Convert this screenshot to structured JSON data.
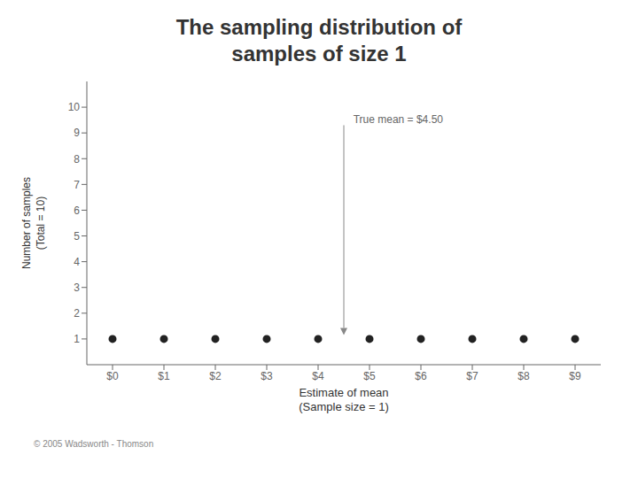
{
  "chart_data": {
    "type": "scatter",
    "title": "The sampling distribution of\nsamples of size 1",
    "x_label": "Estimate of mean\n(Sample size = 1)",
    "y_label": "Number of samples\n(Total = 10)",
    "x": [
      0,
      1,
      2,
      3,
      4,
      5,
      6,
      7,
      8,
      9
    ],
    "values": [
      1,
      1,
      1,
      1,
      1,
      1,
      1,
      1,
      1,
      1
    ],
    "color": "#222222",
    "xlim": [
      -0.5,
      9.5
    ],
    "xticks": [
      {
        "value": 0,
        "label": "$0"
      },
      {
        "value": 1,
        "label": "$1"
      },
      {
        "value": 2,
        "label": "$2"
      },
      {
        "value": 3,
        "label": "$3"
      },
      {
        "value": 4,
        "label": "$4"
      },
      {
        "value": 5,
        "label": "$5"
      },
      {
        "value": 6,
        "label": "$6"
      },
      {
        "value": 7,
        "label": "$7"
      },
      {
        "value": 8,
        "label": "$8"
      },
      {
        "value": 9,
        "label": "$9"
      }
    ],
    "ylim": [
      0,
      11
    ],
    "yticks": [
      1,
      2,
      3,
      4,
      5,
      6,
      7,
      8,
      9,
      10
    ],
    "grid": false,
    "annotations": [
      {
        "text": "True mean  =  $4.50",
        "x": 4.65,
        "y": 9.5,
        "arrow_x": 4.5,
        "arrow_from_y": 9.3,
        "arrow_to_y": 1.15
      }
    ],
    "footnote": "© 2005 Wadsworth - Thomson"
  }
}
